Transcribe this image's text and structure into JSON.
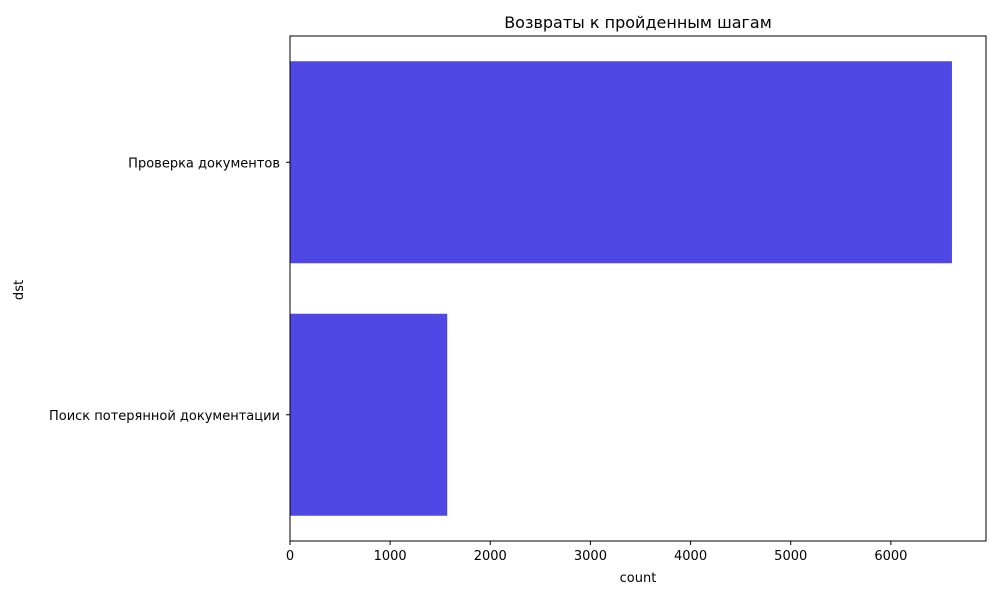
{
  "chart_data": {
    "type": "bar",
    "orientation": "horizontal",
    "title": "Возвраты к пройденным шагам",
    "xlabel": "count",
    "ylabel": "dst",
    "categories": [
      "Проверка документов",
      "Поиск потерянной документации"
    ],
    "values": [
      6610,
      1570
    ],
    "xlim": [
      0,
      6950
    ],
    "xticks": [
      0,
      1000,
      2000,
      3000,
      4000,
      5000,
      6000
    ],
    "grid": false,
    "legend": "none",
    "bar_color": "#5048e5"
  }
}
